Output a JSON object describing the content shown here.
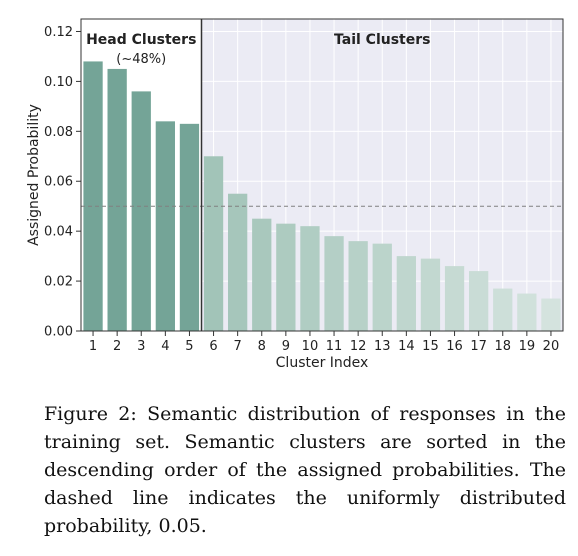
{
  "chart_data": {
    "type": "bar",
    "xlabel": "Cluster Index",
    "ylabel": "Assigned Probability",
    "categories": [
      "1",
      "2",
      "3",
      "4",
      "5",
      "6",
      "7",
      "8",
      "9",
      "10",
      "11",
      "12",
      "13",
      "14",
      "15",
      "16",
      "17",
      "18",
      "19",
      "20"
    ],
    "values": [
      0.108,
      0.105,
      0.096,
      0.084,
      0.083,
      0.07,
      0.055,
      0.045,
      0.043,
      0.042,
      0.038,
      0.036,
      0.035,
      0.03,
      0.029,
      0.026,
      0.024,
      0.017,
      0.015,
      0.013
    ],
    "ylim": [
      0,
      0.125
    ],
    "yticks": [
      "0.00",
      "0.02",
      "0.04",
      "0.06",
      "0.08",
      "0.10",
      "0.12"
    ],
    "uniform_line": 0.05,
    "head_count": 5,
    "head_label": "Head Clusters",
    "head_sublabel": "(~48%)",
    "tail_label": "Tail Clusters",
    "colors": {
      "head_bar": "#74a497",
      "tail_bar_start": "#a2c4b8",
      "tail_bar_end": "#d4e3de",
      "head_bg": "#ffffff",
      "tail_bg": "#ebebf4",
      "dashed_line": "#808080",
      "divider": "#333333"
    }
  },
  "caption": "Figure 2: Semantic distribution of responses in the training set. Semantic clusters are sorted in the descending order of the assigned probabilities. The dashed line indicates the uniformly distributed probability, 0.05."
}
